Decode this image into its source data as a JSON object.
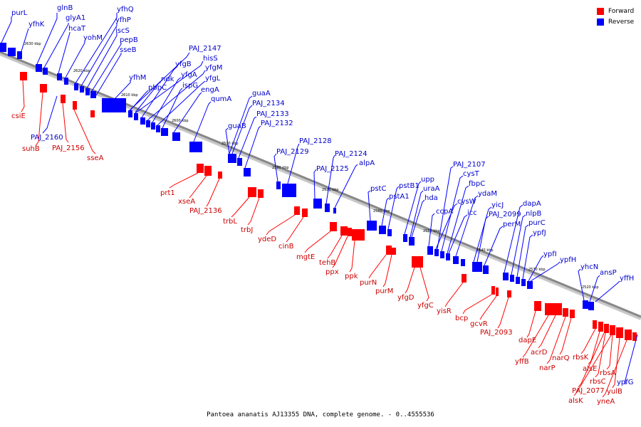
{
  "caption": "Pantoea ananatis AJ13355 DNA, complete genome. - 0..4555536",
  "legend": [
    {
      "label": "Forward",
      "color": "#ff0000"
    },
    {
      "label": "Reverse",
      "color": "#0000ff"
    }
  ],
  "colors": {
    "forward": "#ff0000",
    "reverse": "#0000ff",
    "forward_text": "#cc0000",
    "reverse_text": "#0000cc",
    "axis": "#888888"
  },
  "scale_labels": [
    "2630 kbp",
    "2620 kbp",
    "2610 kbp",
    "2600 kbp",
    "2590 kbp",
    "2580 kbp",
    "2570 kbp",
    "2560 kbp",
    "2550 kbp",
    "2540 kbp",
    "2530 kbp",
    "2520 kbp"
  ],
  "reverse_genes": [
    "purL",
    "glnB",
    "yfhK",
    "glyA1",
    "hcaT",
    "yohM",
    "yfhQ",
    "yfhP",
    "iscS",
    "pepB",
    "sseB",
    "yfhM",
    "PAJ_2147",
    "hisS",
    "yfgB",
    "yfgM",
    "ndk",
    "yfgA",
    "pbpC",
    "yfgL",
    "ispG",
    "engA",
    "qumA",
    "guaA",
    "PAJ_2134",
    "PAJ_2133",
    "PAJ_2132",
    "guaB",
    "PAJ_2128",
    "PAJ_2129",
    "PAJ_2124",
    "PAJ_2125",
    "alpA",
    "pstC",
    "pstB1",
    "upp",
    "pstA1",
    "uraA",
    "hda",
    "PAJ_2107",
    "cysT",
    "ccpA",
    "fbpC",
    "cysW",
    "ydaM",
    "icc",
    "yicJ",
    "PAJ_2099",
    "dapA",
    "perM",
    "nlpB",
    "purC",
    "ypfJ",
    "ypfI",
    "ypfH",
    "yhcN",
    "ansP",
    "yffH",
    "ypfG",
    "PAJ_2160"
  ],
  "forward_genes": [
    "csiE",
    "suhB",
    "PAJ_2156",
    "sseA",
    "prt1",
    "xseA",
    "PAJ_2136",
    "trbL",
    "trbJ",
    "ydeD",
    "cinB",
    "mgtE",
    "tehB",
    "ppx",
    "ppk",
    "purN",
    "purM",
    "yfgD",
    "yfgC",
    "yisR",
    "bcp",
    "gcvR",
    "PAJ_2093",
    "dapE",
    "yffB",
    "acrD",
    "narP",
    "narQ",
    "rbsK",
    "alsE",
    "rbsC",
    "PAJ_2077",
    "rbsA",
    "yulB",
    "alsK",
    "yneA"
  ]
}
